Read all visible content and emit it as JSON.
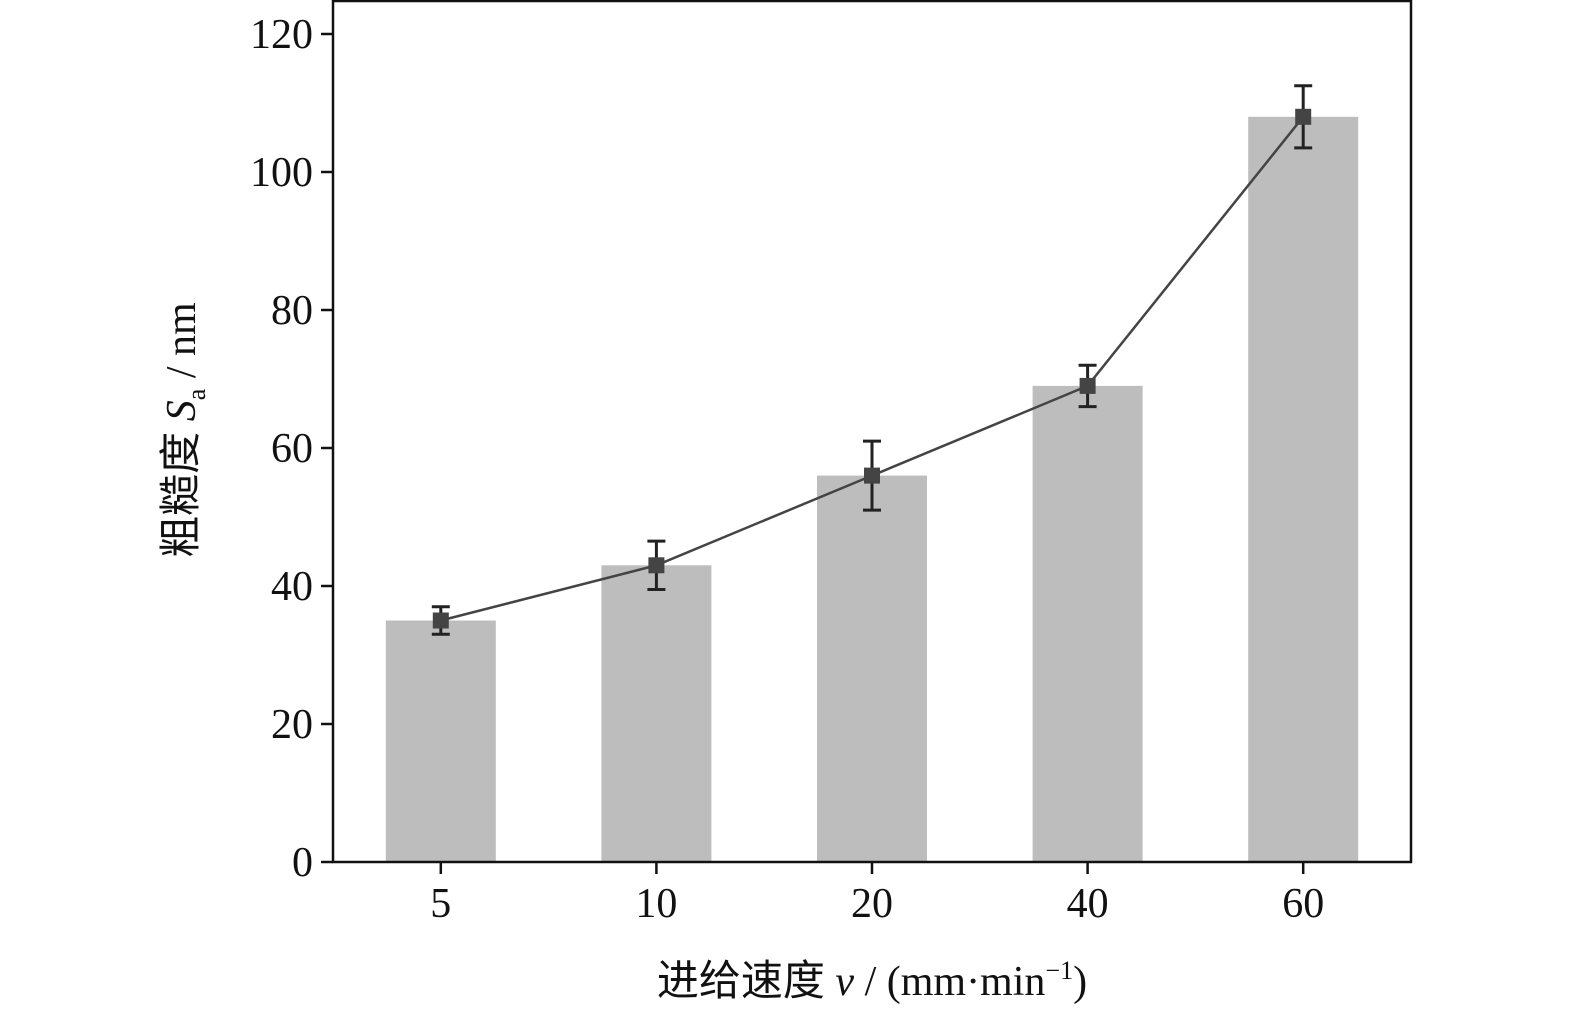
{
  "chart_data": {
    "type": "bar",
    "categories": [
      "5",
      "10",
      "20",
      "40",
      "60"
    ],
    "series": [
      {
        "type": "bar",
        "values": [
          35,
          43,
          56,
          69,
          108
        ],
        "color": "#bdbdbd"
      },
      {
        "type": "line",
        "values": [
          35,
          43,
          56,
          69,
          108
        ],
        "error": [
          2,
          3.5,
          5,
          3,
          4.5
        ],
        "color": "#444444",
        "marker": "square"
      }
    ],
    "title": "",
    "xlabel": {
      "prefix": "进给速度 ",
      "symbol": "v",
      "unit_text": " / (mm·min",
      "unit_sup": "−1",
      "unit_close": ")"
    },
    "ylabel": {
      "prefix": "粗糙度 ",
      "symbol": "S",
      "subscript": "a",
      "unit": " / nm"
    },
    "ylim": [
      0,
      120
    ],
    "yticks": [
      0,
      20,
      40,
      60,
      80,
      100,
      120
    ],
    "grid": false,
    "legend": "none"
  }
}
